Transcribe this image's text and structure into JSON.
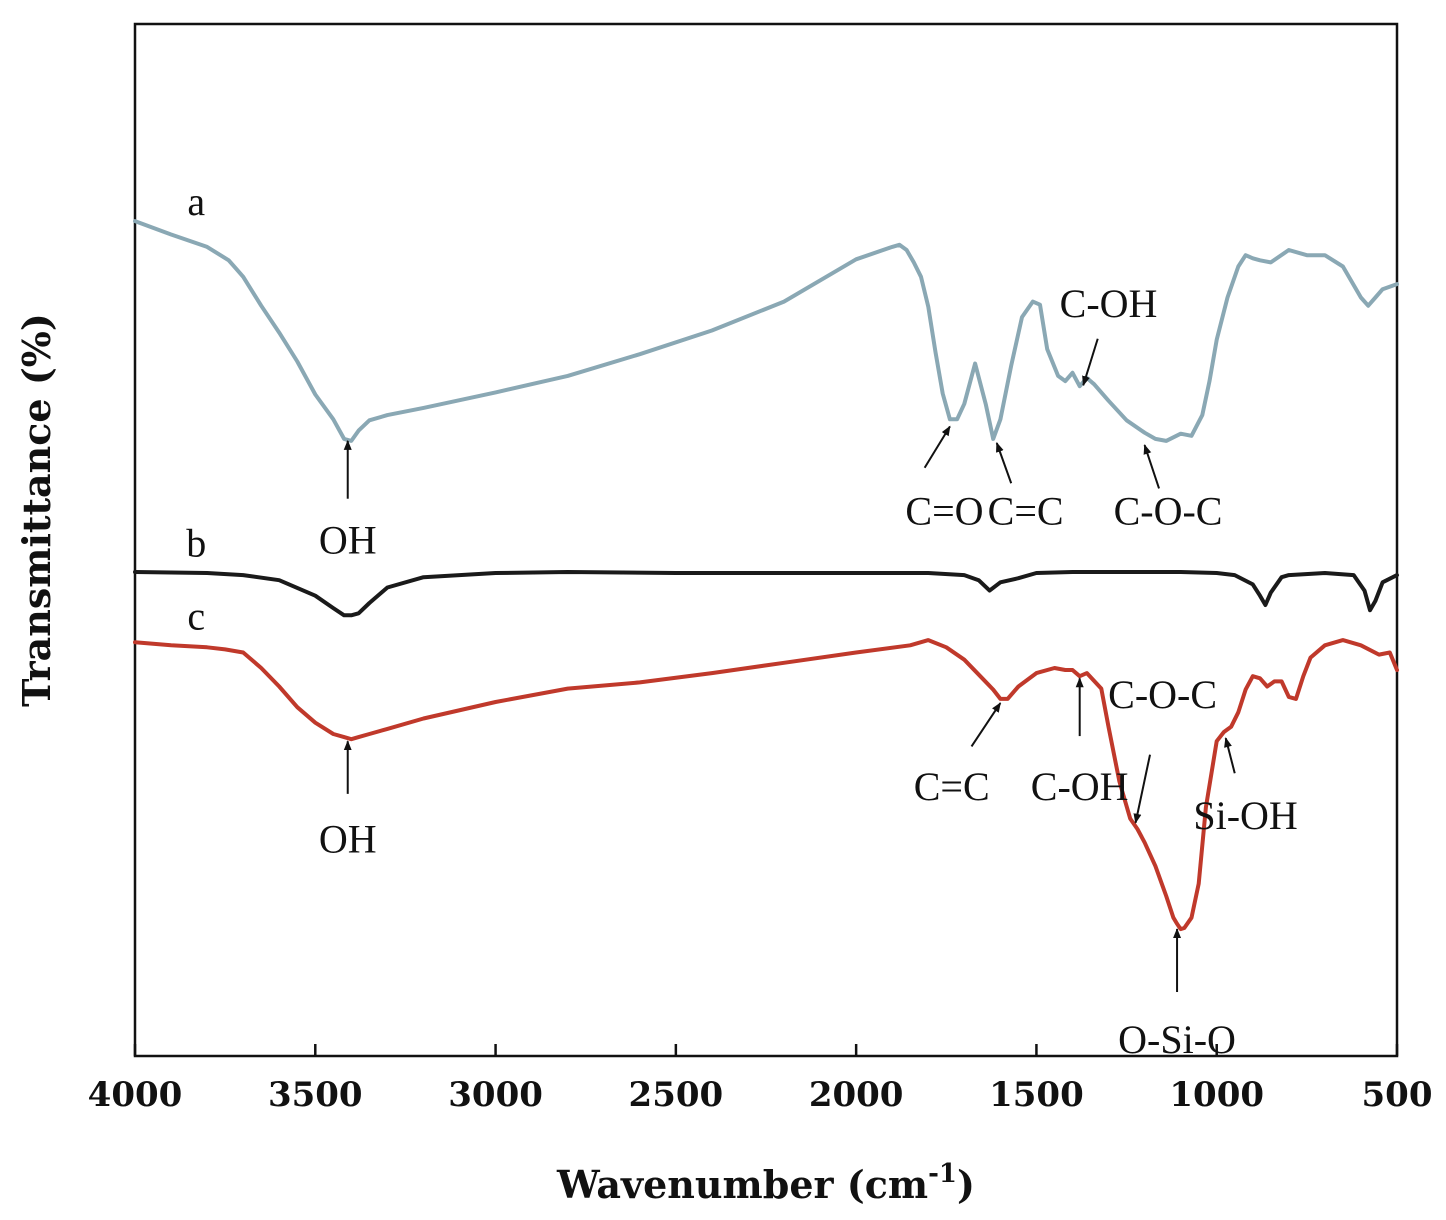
{
  "chart_data": {
    "type": "line",
    "xlabel": "Wavenumber (cm",
    "xlabel_sup": "-1",
    "xlabel_end": ")",
    "ylabel": "Transmittance (%)",
    "xlim": [
      4000,
      500
    ],
    "x_reversed": true,
    "yticks_shown": false,
    "grid": false,
    "xticks": [
      4000,
      3500,
      3000,
      2500,
      2000,
      1500,
      1000,
      500
    ],
    "xtick_labels": [
      "4000",
      "3500",
      "3000",
      "2500",
      "2000",
      "1500",
      "1000",
      "500"
    ],
    "ylim": [
      0,
      100
    ],
    "series": [
      {
        "name": "a",
        "color": "#8aa8b4",
        "x": [
          4000,
          3900,
          3800,
          3740,
          3720,
          3700,
          3650,
          3600,
          3550,
          3500,
          3450,
          3420,
          3400,
          3380,
          3350,
          3300,
          3200,
          3000,
          2800,
          2600,
          2400,
          2200,
          2000,
          1900,
          1880,
          1860,
          1840,
          1820,
          1800,
          1780,
          1760,
          1740,
          1720,
          1700,
          1670,
          1640,
          1620,
          1600,
          1570,
          1540,
          1510,
          1490,
          1470,
          1440,
          1420,
          1400,
          1380,
          1360,
          1340,
          1300,
          1250,
          1200,
          1170,
          1140,
          1100,
          1070,
          1040,
          1020,
          1000,
          970,
          940,
          920,
          900,
          880,
          850,
          800,
          750,
          700,
          650,
          600,
          580,
          560,
          540,
          500
        ],
        "y": [
          80.9,
          79.6,
          78.4,
          77.1,
          76.3,
          75.5,
          72.7,
          70.1,
          67.3,
          64.1,
          61.7,
          59.8,
          59.6,
          60.6,
          61.6,
          62.1,
          62.8,
          64.3,
          65.9,
          68.0,
          70.3,
          73.1,
          77.2,
          78.4,
          78.6,
          78.1,
          76.9,
          75.5,
          72.6,
          68.2,
          64.2,
          61.7,
          61.7,
          63.2,
          67.1,
          63.1,
          59.8,
          61.7,
          66.9,
          71.6,
          73.1,
          72.8,
          68.5,
          65.9,
          65.4,
          66.2,
          64.9,
          65.7,
          65.1,
          63.5,
          61.6,
          60.4,
          59.8,
          59.6,
          60.3,
          60.1,
          62.1,
          65.4,
          69.4,
          73.5,
          76.5,
          77.6,
          77.3,
          77.1,
          76.9,
          78.1,
          77.6,
          77.6,
          76.5,
          73.5,
          72.7,
          73.5,
          74.3,
          74.8
        ]
      },
      {
        "name": "b",
        "color": "#1a1a1a",
        "x": [
          4000,
          3800,
          3700,
          3600,
          3500,
          3450,
          3420,
          3400,
          3380,
          3350,
          3300,
          3200,
          3000,
          2800,
          2500,
          2200,
          2000,
          1800,
          1700,
          1660,
          1630,
          1600,
          1550,
          1500,
          1400,
          1300,
          1200,
          1100,
          1000,
          950,
          900,
          880,
          865,
          850,
          820,
          800,
          700,
          620,
          590,
          575,
          560,
          540,
          500
        ],
        "y": [
          46.9,
          46.8,
          46.6,
          46.1,
          44.6,
          43.4,
          42.7,
          42.7,
          42.9,
          43.9,
          45.4,
          46.4,
          46.8,
          46.9,
          46.8,
          46.8,
          46.8,
          46.8,
          46.6,
          46.1,
          45.1,
          45.9,
          46.3,
          46.8,
          46.9,
          46.9,
          46.9,
          46.9,
          46.8,
          46.6,
          45.7,
          44.6,
          43.7,
          44.9,
          46.4,
          46.6,
          46.8,
          46.6,
          45.1,
          43.2,
          44.1,
          45.9,
          46.6
        ]
      },
      {
        "name": "c",
        "color": "#c0392b",
        "x": [
          4000,
          3900,
          3800,
          3750,
          3700,
          3650,
          3600,
          3550,
          3500,
          3450,
          3420,
          3400,
          3380,
          3350,
          3300,
          3200,
          3000,
          2800,
          2600,
          2400,
          2200,
          2000,
          1850,
          1800,
          1750,
          1700,
          1650,
          1620,
          1600,
          1580,
          1550,
          1500,
          1450,
          1420,
          1400,
          1380,
          1360,
          1320,
          1300,
          1270,
          1240,
          1220,
          1200,
          1170,
          1140,
          1120,
          1110,
          1100,
          1090,
          1070,
          1050,
          1030,
          1000,
          980,
          960,
          940,
          920,
          900,
          880,
          860,
          840,
          820,
          800,
          780,
          760,
          740,
          700,
          650,
          600,
          550,
          520,
          500
        ],
        "y": [
          40.1,
          39.8,
          39.6,
          39.4,
          39.1,
          37.6,
          35.8,
          33.8,
          32.3,
          31.2,
          30.9,
          30.7,
          30.9,
          31.2,
          31.7,
          32.7,
          34.3,
          35.6,
          36.2,
          37.1,
          38.1,
          39.1,
          39.8,
          40.3,
          39.6,
          38.4,
          36.6,
          35.5,
          34.6,
          34.6,
          35.8,
          37.1,
          37.6,
          37.4,
          37.4,
          36.8,
          37.1,
          35.6,
          31.9,
          26.6,
          23.0,
          22.0,
          20.7,
          18.4,
          15.5,
          13.4,
          12.8,
          12.3,
          12.4,
          13.4,
          16.7,
          24.1,
          30.5,
          31.4,
          31.9,
          33.3,
          35.5,
          36.8,
          36.6,
          35.8,
          36.3,
          36.3,
          34.8,
          34.6,
          36.8,
          38.6,
          39.8,
          40.3,
          39.8,
          38.9,
          39.1,
          37.4
        ]
      }
    ],
    "series_labels": [
      {
        "text": "a",
        "x": 3830,
        "y": 82.4
      },
      {
        "text": "b",
        "x": 3830,
        "y": 49.3
      },
      {
        "text": "c",
        "x": 3830,
        "y": 42.2
      }
    ],
    "annotations": [
      {
        "text": "OH",
        "x": 3410,
        "y": 59.6,
        "tx": 3410,
        "ty": 54.0,
        "lx": 3410,
        "ly": 49.6
      },
      {
        "text": "C=O",
        "x": 1740,
        "y": 61.0,
        "tx": 1810,
        "ty": 57.0,
        "lx": 1755,
        "ly": 52.4
      },
      {
        "text": "C=C",
        "x": 1610,
        "y": 59.4,
        "tx": 1570,
        "ty": 55.5,
        "lx": 1530,
        "ly": 52.4
      },
      {
        "text": "C-OH",
        "x": 1370,
        "y": 65.0,
        "tx": 1330,
        "ty": 69.5,
        "lx": 1300,
        "ly": 72.5
      },
      {
        "text": "C-O-C",
        "x": 1200,
        "y": 59.2,
        "tx": 1160,
        "ty": 55.0,
        "lx": 1135,
        "ly": 52.4
      },
      {
        "text": "OH",
        "x": 3410,
        "y": 30.5,
        "tx": 3410,
        "ty": 25.4,
        "lx": 3410,
        "ly": 20.6
      },
      {
        "text": "C=C",
        "x": 1600,
        "y": 34.2,
        "tx": 1680,
        "ty": 30.0,
        "lx": 1735,
        "ly": 25.7
      },
      {
        "text": "C-OH",
        "x": 1380,
        "y": 36.6,
        "tx": 1380,
        "ty": 31.0,
        "lx": 1380,
        "ly": 25.7
      },
      {
        "text": "C-O-C",
        "x": 1225,
        "y": 22.6,
        "tx": 1185,
        "ty": 29.2,
        "lx": 1150,
        "ly": 34.6
      },
      {
        "text": "Si-OH",
        "x": 975,
        "y": 30.8,
        "tx": 950,
        "ty": 27.4,
        "lx": 920,
        "ly": 22.9
      },
      {
        "text": "O-Si-O",
        "x": 1110,
        "y": 12.3,
        "tx": 1110,
        "ty": 6.2,
        "lx": 1110,
        "ly": 1.2
      }
    ]
  }
}
